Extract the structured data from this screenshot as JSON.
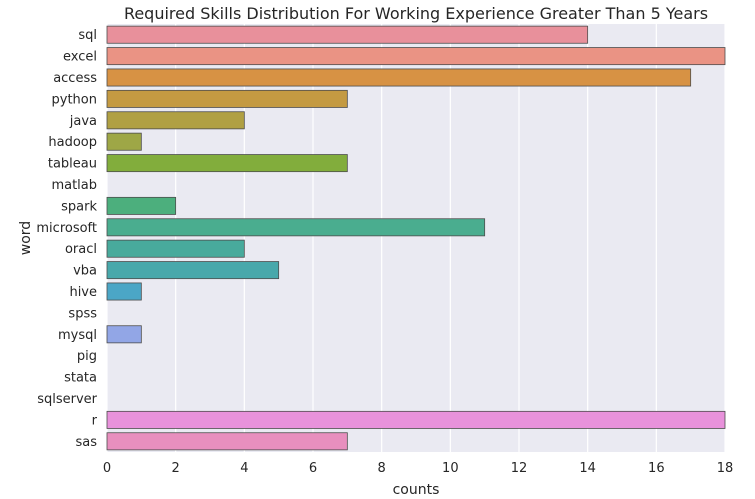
{
  "chart_data": {
    "type": "bar",
    "orientation": "horizontal",
    "title": "Required Skills Distribution For Working Experience Greater Than 5 Years",
    "xlabel": "counts",
    "ylabel": "word",
    "xlim": [
      0,
      18
    ],
    "xticks": [
      0,
      2,
      4,
      6,
      8,
      10,
      12,
      14,
      16,
      18
    ],
    "grid": true,
    "categories": [
      "sql",
      "excel",
      "access",
      "python",
      "java",
      "hadoop",
      "tableau",
      "matlab",
      "spark",
      "microsoft",
      "oracl",
      "vba",
      "hive",
      "spss",
      "mysql",
      "pig",
      "stata",
      "sqlserver",
      "r",
      "sas"
    ],
    "values": [
      14,
      18,
      17,
      7,
      4,
      1,
      7,
      0,
      2,
      11,
      4,
      5,
      1,
      0,
      1,
      0,
      0,
      0,
      18,
      7
    ],
    "colors": [
      "#e8909b",
      "#ea9384",
      "#d79244",
      "#c49a42",
      "#b0a043",
      "#9ea746",
      "#82ad3c",
      "#52b06d",
      "#4caf7d",
      "#4aad8f",
      "#48aa9c",
      "#48a8ab",
      "#4ba6c6",
      "#7ba6e0",
      "#92a6e6",
      "#b39ce6",
      "#d893e4",
      "#e58ed3",
      "#e892db",
      "#e88fbe"
    ]
  }
}
